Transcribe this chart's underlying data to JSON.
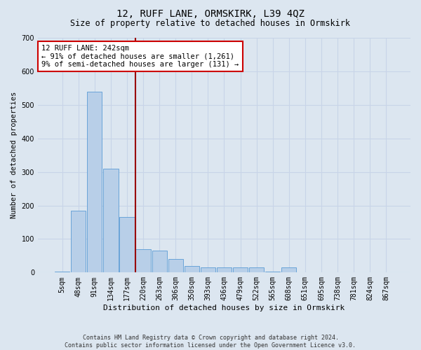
{
  "title": "12, RUFF LANE, ORMSKIRK, L39 4QZ",
  "subtitle": "Size of property relative to detached houses in Ormskirk",
  "xlabel": "Distribution of detached houses by size in Ormskirk",
  "ylabel": "Number of detached properties",
  "footer_line1": "Contains HM Land Registry data © Crown copyright and database right 2024.",
  "footer_line2": "Contains public sector information licensed under the Open Government Licence v3.0.",
  "bin_labels": [
    "5sqm",
    "48sqm",
    "91sqm",
    "134sqm",
    "177sqm",
    "220sqm",
    "263sqm",
    "306sqm",
    "350sqm",
    "393sqm",
    "436sqm",
    "479sqm",
    "522sqm",
    "565sqm",
    "608sqm",
    "651sqm",
    "695sqm",
    "738sqm",
    "781sqm",
    "824sqm",
    "867sqm"
  ],
  "bar_values": [
    2,
    185,
    540,
    310,
    165,
    70,
    65,
    40,
    20,
    15,
    15,
    15,
    15,
    3,
    15,
    0,
    0,
    0,
    0,
    0,
    0
  ],
  "bar_color": "#b8cfe8",
  "bar_edge_color": "#5b9bd5",
  "grid_color": "#c8d4e8",
  "background_color": "#dce6f0",
  "vline_x_index": 4.52,
  "vline_color": "#990000",
  "annotation_text": "12 RUFF LANE: 242sqm\n← 91% of detached houses are smaller (1,261)\n9% of semi-detached houses are larger (131) →",
  "annotation_box_color": "#ffffff",
  "annotation_box_edge": "#cc0000",
  "ylim": [
    0,
    700
  ],
  "yticks": [
    0,
    100,
    200,
    300,
    400,
    500,
    600,
    700
  ],
  "title_fontsize": 10,
  "subtitle_fontsize": 8.5,
  "ylabel_fontsize": 7.5,
  "xlabel_fontsize": 8,
  "tick_fontsize": 7,
  "annot_fontsize": 7.5,
  "footer_fontsize": 6
}
